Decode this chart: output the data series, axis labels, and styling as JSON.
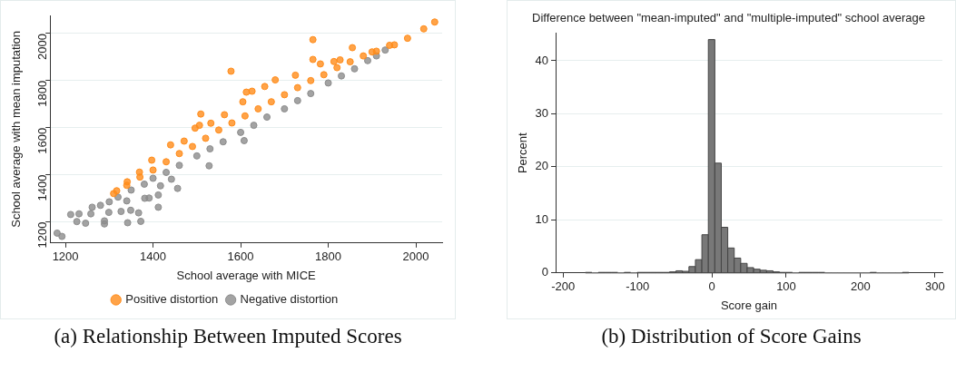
{
  "chart_data": [
    {
      "type": "scatter",
      "xlabel": "School average with MICE",
      "ylabel": "School average with mean imputation",
      "xlim": [
        1165,
        2060
      ],
      "ylim": [
        1110,
        2077
      ],
      "xticks": [
        1200,
        1400,
        1600,
        1800,
        2000
      ],
      "yticks": [
        1200,
        1400,
        1600,
        1800,
        2000
      ],
      "grid": "y",
      "legend": "bottom",
      "marker": "circle",
      "annotations": [
        "(a) Relationship Between Imputed Scores"
      ],
      "series": [
        {
          "name": "Positive distortion",
          "color": "#ff8c1a",
          "x": [
            2043,
            2018,
            1981,
            1951,
            1765,
            1855,
            1578,
            1765,
            1782,
            1879,
            1900,
            1725,
            1679,
            1613,
            1626,
            1655,
            1509,
            1496,
            1506,
            1471,
            1440,
            1397,
            1369,
            1341,
            1317,
            1605,
            1563,
            1532,
            1813,
            1827,
            1310,
            1340,
            1370,
            1400,
            1430,
            1460,
            1490,
            1520,
            1550,
            1580,
            1610,
            1640,
            1670,
            1700,
            1730,
            1760,
            1790,
            1820,
            1850,
            1880,
            1910,
            1940
          ],
          "values": [
            2049,
            2020,
            1980,
            1952,
            1974,
            1940,
            1840,
            1890,
            1871,
            null,
            1922,
            1823,
            1803,
            1751,
            1755,
            1775,
            1658,
            1598,
            1610,
            1543,
            1527,
            1462,
            1411,
            1370,
            1332,
            1710,
            1655,
            1619,
            1881,
            1888,
            1320,
            1355,
            1390,
            1420,
            1455,
            1490,
            1520,
            1555,
            1590,
            1620,
            1650,
            1680,
            1710,
            1740,
            1770,
            1800,
            1825,
            1855,
            1880,
            1905,
            1925,
            1950
          ]
        },
        {
          "name": "Negative distortion",
          "color": "#8c8c8c",
          "x": [
            1181,
            1192,
            1226,
            1246,
            1289,
            1337,
            1342,
            1372,
            1412,
            1367,
            1349,
            1327,
            1412,
            1456,
            1528,
            1608,
            1381,
            1391,
            1417,
            1442,
            1340,
            1231,
            1261,
            1289,
            1212,
            1299,
            1258,
            1280,
            1300,
            1320,
            1350,
            1380,
            1400,
            1430,
            1460,
            1500,
            1530,
            1560,
            1600,
            1630,
            1660,
            1700,
            1730,
            1760,
            1800,
            1830,
            1860,
            1890,
            1910,
            1930
          ],
          "values": [
            1152,
            1138,
            1201,
            1194,
            1191,
            null,
            1196,
            1202,
            1262,
            1238,
            1249,
            1244,
            1314,
            1342,
            1438,
            1545,
            1300,
            1301,
            1353,
            1381,
            1289,
            1234,
            1262,
            1204,
            1231,
            1240,
            1234,
            1270,
            1285,
            1305,
            1335,
            1360,
            1385,
            1410,
            1440,
            1480,
            1510,
            1540,
            1580,
            1610,
            1645,
            1680,
            1715,
            1745,
            1790,
            1820,
            1850,
            1885,
            1905,
            1930
          ]
        }
      ]
    },
    {
      "type": "histogram",
      "title": "Difference between \"mean-imputed\" and \"multiple-imputed\" school average",
      "xlabel": "Score gain",
      "ylabel": "Percent",
      "xlim": [
        -210,
        310
      ],
      "ylim": [
        0,
        45.2
      ],
      "xticks": [
        -200,
        -100,
        0,
        100,
        200,
        300
      ],
      "yticks": [
        0,
        10,
        20,
        30,
        40
      ],
      "grid": "y",
      "color": "#787878",
      "annotations": [
        "(b) Distribution of Score Gains"
      ],
      "bins": [
        -170,
        -161.3,
        -152.6,
        -143.9,
        -135.2,
        -126.5,
        -117.8,
        -109.1,
        -100.4,
        -91.7,
        -83,
        -74.3,
        -65.6,
        -56.9,
        -48.2,
        -39.5,
        -30.8,
        -22.1,
        -13.4,
        -4.7,
        4,
        12.7,
        21.4,
        30.1,
        38.8,
        47.5,
        56.2,
        64.9,
        73.6,
        82.3,
        91,
        99.7,
        108.4,
        117.1,
        125.8,
        134.5,
        143.2,
        151.9,
        160.6,
        169.3,
        178,
        186.7,
        195.4,
        204.1,
        212.8,
        221.5,
        230.2,
        238.9,
        247.6,
        256.3,
        265
      ],
      "values": [
        0.1,
        0,
        0.1,
        0.1,
        0.1,
        0,
        0.1,
        0,
        0.1,
        0.1,
        0.1,
        0.1,
        0.1,
        0.2,
        0.4,
        0.3,
        1.2,
        2.5,
        7.2,
        44,
        20.7,
        8.6,
        4.7,
        2.8,
        1.8,
        1,
        0.7,
        0.5,
        0.4,
        0.2,
        0.1,
        0.1,
        0,
        0.1,
        0.1,
        0.1,
        0.1,
        0,
        0,
        0,
        0,
        0,
        0,
        0,
        0.1,
        0,
        0,
        0,
        0,
        0.1
      ]
    }
  ]
}
